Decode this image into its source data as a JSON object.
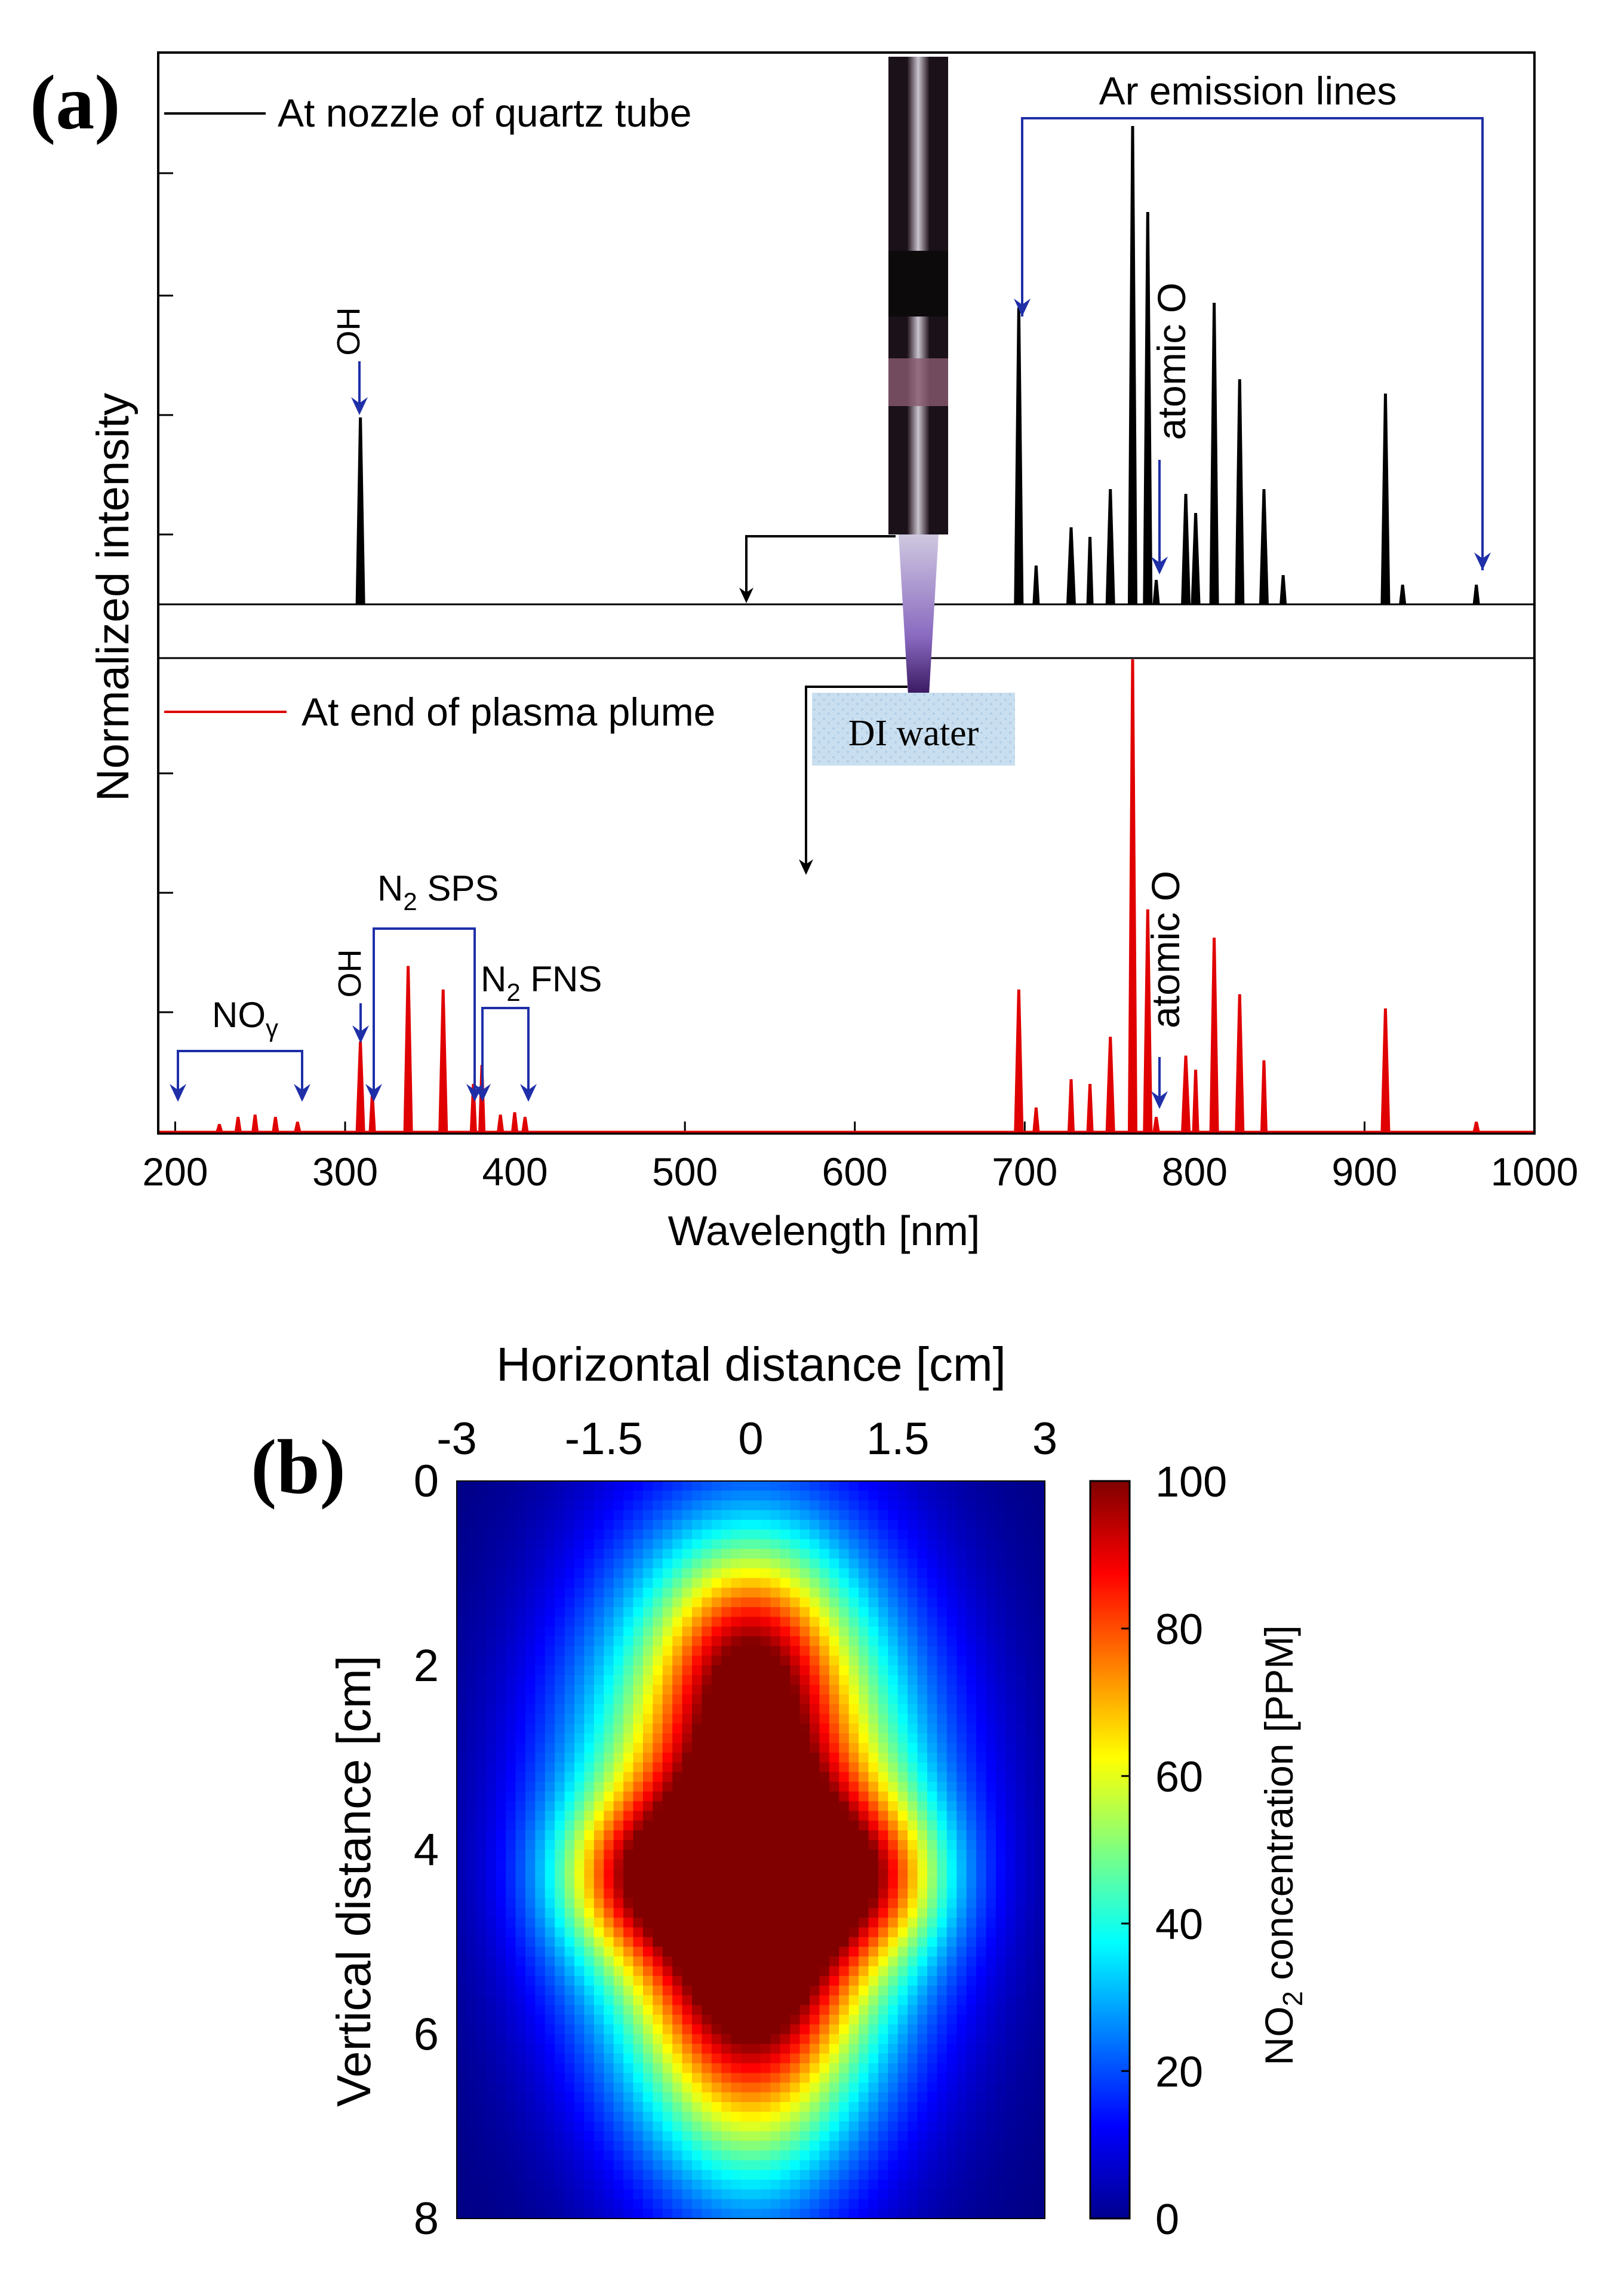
{
  "panel_a": {
    "panel_label": "(a)",
    "legend_top": "At nozzle of quartz tube",
    "legend_bottom": "At end of plasma plume",
    "xlabel": "Wavelength [nm]",
    "ylabel": "Normalized intensity",
    "inset_label": "DI water",
    "annotations": {
      "ar_lines": "Ar emission lines",
      "oh_top": "OH",
      "atomic_o_top": "atomic O",
      "oh_bottom": "OH",
      "n2_sps_main": "N",
      "n2_sps_sub": "2",
      "n2_sps_tail": " SPS",
      "n2_fns_main": "N",
      "n2_fns_sub": "2",
      "n2_fns_tail": " FNS",
      "no_main": "NO",
      "no_sub": "γ",
      "atomic_o_bottom": "atomic O"
    },
    "colors": {
      "top": "#000000",
      "bottom": "#e00000",
      "annot": "#1f2fa8"
    }
  },
  "panel_b": {
    "panel_label": "(b)",
    "xlabel": "Horizontal distance [cm]",
    "ylabel": "Vertical distance [cm]",
    "cbar_label_main": "NO",
    "cbar_label_sub": "2",
    "cbar_label_tail": " concentration [PPM]"
  },
  "chart_data": [
    {
      "type": "line",
      "xlabel": "Wavelength [nm]",
      "ylabel": "Normalized intensity",
      "xlim": [
        190,
        1000
      ],
      "xticks": [
        200,
        300,
        400,
        500,
        600,
        700,
        800,
        900,
        1000
      ],
      "series": [
        {
          "name": "At nozzle of quartz tube",
          "color": "#000000",
          "baseline": 0.0,
          "peaks": [
            {
              "x": 309,
              "y": 0.39
            },
            {
              "x": 696.5,
              "y": 0.62
            },
            {
              "x": 706.7,
              "y": 0.08
            },
            {
              "x": 727.3,
              "y": 0.16
            },
            {
              "x": 738.4,
              "y": 0.14
            },
            {
              "x": 750.4,
              "y": 0.24
            },
            {
              "x": 763.5,
              "y": 1.0
            },
            {
              "x": 772.4,
              "y": 0.82
            },
            {
              "x": 777.4,
              "y": 0.05
            },
            {
              "x": 794.8,
              "y": 0.23
            },
            {
              "x": 800.6,
              "y": 0.19
            },
            {
              "x": 811.5,
              "y": 0.63
            },
            {
              "x": 826.5,
              "y": 0.47
            },
            {
              "x": 840.8,
              "y": 0.24
            },
            {
              "x": 852.1,
              "y": 0.06
            },
            {
              "x": 912.3,
              "y": 0.44
            },
            {
              "x": 922.4,
              "y": 0.04
            },
            {
              "x": 965.8,
              "y": 0.04
            }
          ]
        },
        {
          "name": "At end of plasma plume",
          "color": "#e00000",
          "baseline": 0.0,
          "peaks": [
            {
              "x": 226,
              "y": 0.015
            },
            {
              "x": 237,
              "y": 0.03
            },
            {
              "x": 247,
              "y": 0.035
            },
            {
              "x": 259,
              "y": 0.03
            },
            {
              "x": 272,
              "y": 0.02
            },
            {
              "x": 309,
              "y": 0.19
            },
            {
              "x": 316,
              "y": 0.08
            },
            {
              "x": 337.1,
              "y": 0.35
            },
            {
              "x": 357.7,
              "y": 0.3
            },
            {
              "x": 375.5,
              "y": 0.1
            },
            {
              "x": 380.5,
              "y": 0.14
            },
            {
              "x": 391.4,
              "y": 0.035
            },
            {
              "x": 399.8,
              "y": 0.04
            },
            {
              "x": 405.9,
              "y": 0.03
            },
            {
              "x": 696.5,
              "y": 0.3
            },
            {
              "x": 706.7,
              "y": 0.05
            },
            {
              "x": 727.3,
              "y": 0.11
            },
            {
              "x": 738.4,
              "y": 0.1
            },
            {
              "x": 750.4,
              "y": 0.2
            },
            {
              "x": 763.5,
              "y": 1.0
            },
            {
              "x": 772.4,
              "y": 0.47
            },
            {
              "x": 777.4,
              "y": 0.03
            },
            {
              "x": 794.8,
              "y": 0.16
            },
            {
              "x": 800.6,
              "y": 0.13
            },
            {
              "x": 811.5,
              "y": 0.41
            },
            {
              "x": 826.5,
              "y": 0.29
            },
            {
              "x": 840.8,
              "y": 0.15
            },
            {
              "x": 912.3,
              "y": 0.26
            },
            {
              "x": 965.8,
              "y": 0.02
            }
          ]
        }
      ]
    },
    {
      "type": "heatmap",
      "xlabel": "Horizontal distance [cm]",
      "ylabel": "Vertical distance [cm]",
      "colorbar_label": "NO2 concentration [PPM]",
      "xlim": [
        -3,
        3
      ],
      "ylim": [
        0,
        8
      ],
      "xticks": [
        "-3",
        "-1.5",
        "0",
        "1.5",
        "3"
      ],
      "yticks": [
        "0",
        "2",
        "4",
        "6",
        "8"
      ],
      "cticks": [
        "0",
        "20",
        "40",
        "60",
        "80",
        "100"
      ],
      "clim": [
        0,
        100
      ],
      "colormap": "jet",
      "blobs": [
        {
          "cx": 0.0,
          "cy": 3.8,
          "sx": 1.2,
          "sy": 2.1,
          "amp": 96
        },
        {
          "cx": 0.0,
          "cy": 5.2,
          "sx": 0.7,
          "sy": 1.6,
          "amp": 55
        },
        {
          "cx": -1.2,
          "cy": 4.3,
          "sx": 0.6,
          "sy": 0.6,
          "amp": 40
        },
        {
          "cx": 1.2,
          "cy": 4.3,
          "sx": 0.6,
          "sy": 0.6,
          "amp": 40
        },
        {
          "cx": 0.0,
          "cy": 1.8,
          "sx": 0.6,
          "sy": 0.8,
          "amp": 35
        }
      ]
    }
  ]
}
